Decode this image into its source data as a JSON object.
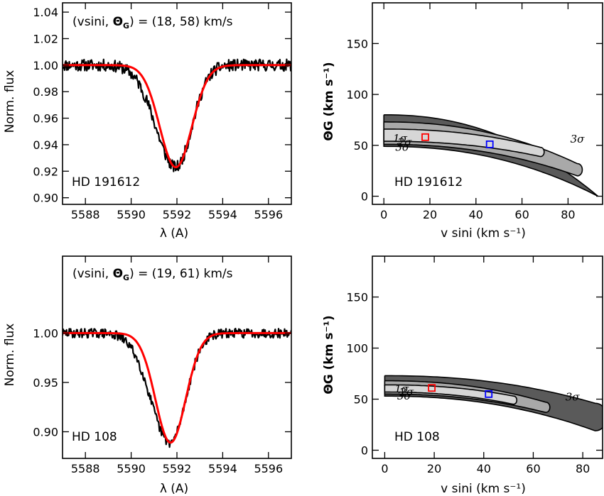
{
  "chart_data": [
    {
      "type": "line",
      "panel": "spectrum-1",
      "annotation": "(vsini, ΘG) = (18, 58) km/s",
      "annotation_parts": {
        "prefix": "(vsini, ",
        "theta": "Θ",
        "theta_sub": "G",
        "suffix": ") = (18, 58) km/s"
      },
      "star_label": "HD 191612",
      "xlabel": "λ (A)",
      "ylabel": "Norm. flux",
      "xlim": [
        5587,
        5597
      ],
      "ylim": [
        0.895,
        1.047
      ],
      "xticks": [
        5588,
        5590,
        5592,
        5594,
        5596
      ],
      "yticks": [
        0.9,
        0.92,
        0.94,
        0.96,
        0.98,
        1.0,
        1.02,
        1.04
      ],
      "ytick_labels": [
        "0.90",
        "0.92",
        "0.94",
        "0.96",
        "0.98",
        "1.00",
        "1.02",
        "1.04"
      ],
      "series": [
        {
          "style": "observed",
          "color": "#000000",
          "profile": {
            "center": 5591.95,
            "depth": 0.077,
            "sigma": 0.7,
            "skew_left": 1.25,
            "noise": 0.0028,
            "seed": 11,
            "x_range": [
              5587,
              5597
            ]
          }
        },
        {
          "style": "model",
          "color": "#ff0000",
          "profile": {
            "center": 5591.95,
            "depth": 0.077,
            "sigma": 0.7,
            "skew_left": 1.0,
            "noise": 0,
            "x_range": [
              5587,
              5597
            ]
          }
        }
      ]
    },
    {
      "type": "heatmap",
      "panel": "contour-1",
      "star_label": "HD 191612",
      "xlabel": "v sini (km s⁻¹)",
      "ylabel": "ΘG (km s⁻¹)",
      "xlim": [
        -5,
        95
      ],
      "ylim": [
        -8,
        190
      ],
      "xticks": [
        0,
        20,
        40,
        60,
        80
      ],
      "yticks": [
        0,
        50,
        100,
        150
      ],
      "levels": [
        {
          "name": "3σ",
          "color": "#5a5a5a",
          "band": {
            "top0": 80,
            "bottom0": 49,
            "x_end": 93,
            "bottom_end": 0,
            "top_end": 0,
            "cap": "flat"
          }
        },
        {
          "name": "2σ",
          "color": "#a9a9a9",
          "band": {
            "top0": 73,
            "bottom0": 51,
            "x_end": 84,
            "bottom_end": 20,
            "top_end": 32,
            "cap": "round"
          }
        },
        {
          "name": "1σ",
          "color": "#d6d6d6",
          "band": {
            "top0": 66,
            "bottom0": 54,
            "x_end": 68,
            "bottom_end": 39,
            "top_end": 48,
            "cap": "round"
          }
        }
      ],
      "contour_labels": [
        {
          "text": "1σ",
          "x": 4,
          "y": 57
        },
        {
          "text": "2σ",
          "x": 6,
          "y": 53
        },
        {
          "text": "3σ",
          "x": 5,
          "y": 48
        },
        {
          "text": "3σ",
          "x": 81,
          "y": 56
        }
      ],
      "markers": [
        {
          "color": "#ff0000",
          "x": 18,
          "y": 58
        },
        {
          "color": "#0000ff",
          "x": 46,
          "y": 51
        }
      ]
    },
    {
      "type": "line",
      "panel": "spectrum-2",
      "annotation": "(vsini, ΘG) = (19, 61) km/s",
      "annotation_parts": {
        "prefix": "(vsini, ",
        "theta": "Θ",
        "theta_sub": "G",
        "suffix": ") = (19, 61) km/s"
      },
      "star_label": "HD 108",
      "xlabel": "λ (A)",
      "ylabel": "Norm. flux",
      "xlim": [
        5587,
        5597
      ],
      "ylim": [
        0.873,
        1.078
      ],
      "xticks": [
        5588,
        5590,
        5592,
        5594,
        5596
      ],
      "yticks": [
        0.9,
        0.95,
        1.0
      ],
      "ytick_labels": [
        "0.90",
        "0.95",
        "1.00"
      ],
      "series": [
        {
          "style": "observed",
          "color": "#000000",
          "profile": {
            "center": 5591.7,
            "depth": 0.111,
            "sigma": 0.68,
            "skew_left": 1.25,
            "noise": 0.003,
            "seed": 29,
            "x_range": [
              5587,
              5597
            ]
          }
        },
        {
          "style": "model",
          "color": "#ff0000",
          "profile": {
            "center": 5591.72,
            "depth": 0.111,
            "sigma": 0.66,
            "skew_left": 1.0,
            "noise": 0,
            "x_range": [
              5587,
              5597
            ]
          }
        }
      ]
    },
    {
      "type": "heatmap",
      "panel": "contour-2",
      "star_label": "HD 108",
      "xlabel": "v sini (km s⁻¹)",
      "ylabel": "ΘG (km s⁻¹)",
      "xlim": [
        -5,
        88
      ],
      "ylim": [
        -8,
        190
      ],
      "xticks": [
        0,
        20,
        40,
        60,
        80
      ],
      "yticks": [
        0,
        50,
        100,
        150
      ],
      "levels": [
        {
          "name": "3σ",
          "color": "#5a5a5a",
          "band": {
            "top0": 73,
            "bottom0": 53,
            "x_end": 85,
            "bottom_end": 19,
            "top_end": 46,
            "cap": "round"
          }
        },
        {
          "name": "2σ",
          "color": "#a9a9a9",
          "band": {
            "top0": 68,
            "bottom0": 55,
            "x_end": 65,
            "bottom_end": 37,
            "top_end": 47,
            "cap": "round"
          }
        },
        {
          "name": "1σ",
          "color": "#d6d6d6",
          "band": {
            "top0": 64,
            "bottom0": 57,
            "x_end": 52,
            "bottom_end": 45,
            "top_end": 53,
            "cap": "round"
          }
        }
      ],
      "contour_labels": [
        {
          "text": "1σ",
          "x": 4,
          "y": 60
        },
        {
          "text": "2σ",
          "x": 6,
          "y": 57
        },
        {
          "text": "3σ",
          "x": 5,
          "y": 53
        },
        {
          "text": "3σ",
          "x": 73,
          "y": 52
        }
      ],
      "markers": [
        {
          "color": "#ff0000",
          "x": 19,
          "y": 61
        },
        {
          "color": "#0000ff",
          "x": 42,
          "y": 55
        }
      ]
    }
  ]
}
